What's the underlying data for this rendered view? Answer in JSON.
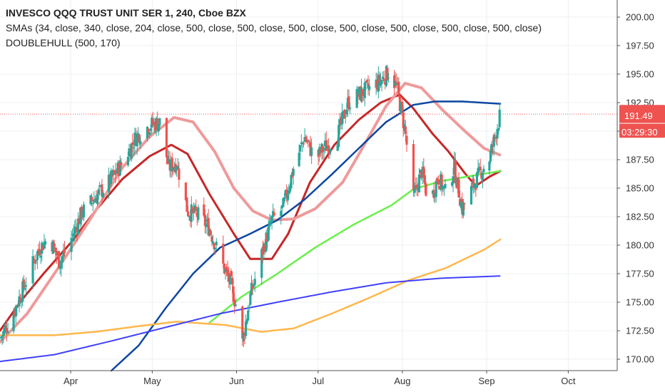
{
  "legend": {
    "title": "INVESCO QQQ TRUST UNIT SER 1, 240, Cboe BZX",
    "smas": "SMAs (34, close, 340, close, 204, close, 500, close, 500, close, 500, close, 500, close, 500, close, 500, close, 500, close)",
    "hull": "DOUBLEHULL (500, 170)"
  },
  "price_badge": {
    "price": "191.49",
    "countdown": "03:29:30",
    "color": "#ef5350"
  },
  "colors": {
    "up": "#26a69a",
    "down": "#ef5350",
    "hull_fast": "#c62828",
    "hull_slow": "#ef9a9a",
    "sma_blue": "#0d47a1",
    "sma_green": "#69f04a",
    "sma_orange": "#ffb74d",
    "sma_violet": "#3d3dff",
    "price_line": "#ef5350"
  },
  "chart_data": {
    "type": "candlestick",
    "title": "INVESCO QQQ TRUST UNIT SER 1, 240, Cboe BZX",
    "ylim": [
      169,
      201.5
    ],
    "yticks": [
      170,
      172.5,
      175,
      177.5,
      180,
      182.5,
      185,
      187.5,
      190,
      192.5,
      195,
      197.5,
      200
    ],
    "ytick_labels": [
      "170.00",
      "172.50",
      "175.00",
      "177.50",
      "180.00",
      "182.50",
      "185.00",
      "187.50",
      "190.00",
      "192.50",
      "195.00",
      "197.50",
      "200.00"
    ],
    "x_range": [
      "2019-03-06",
      "2019-10-19"
    ],
    "xticks": [
      {
        "label": "Apr",
        "date": "2019-04-01"
      },
      {
        "label": "May",
        "date": "2019-05-01"
      },
      {
        "label": "Jun",
        "date": "2019-06-01"
      },
      {
        "label": "Jul",
        "date": "2019-07-01"
      },
      {
        "label": "Aug",
        "date": "2019-08-01"
      },
      {
        "label": "Sep",
        "date": "2019-09-01"
      },
      {
        "label": "Oct",
        "date": "2019-10-01"
      }
    ],
    "last_price": 191.49,
    "close_path": [
      [
        "2019-03-06",
        171.8
      ],
      [
        "2019-03-10",
        173.5
      ],
      [
        "2019-03-15",
        176.5
      ],
      [
        "2019-03-20",
        179.5
      ],
      [
        "2019-03-24",
        180.8
      ],
      [
        "2019-03-28",
        178.5
      ],
      [
        "2019-04-01",
        180.5
      ],
      [
        "2019-04-05",
        182.8
      ],
      [
        "2019-04-10",
        184.2
      ],
      [
        "2019-04-15",
        185.5
      ],
      [
        "2019-04-20",
        187.2
      ],
      [
        "2019-04-25",
        189.5
      ],
      [
        "2019-04-30",
        190.5
      ],
      [
        "2019-05-04",
        190.8
      ],
      [
        "2019-05-07",
        186.8
      ],
      [
        "2019-05-10",
        187.2
      ],
      [
        "2019-05-14",
        183.0
      ],
      [
        "2019-05-18",
        182.6
      ],
      [
        "2019-05-22",
        181.5
      ],
      [
        "2019-05-26",
        178.8
      ],
      [
        "2019-05-30",
        176.5
      ],
      [
        "2019-06-01",
        174.5
      ],
      [
        "2019-06-03",
        171.2
      ],
      [
        "2019-06-06",
        175.5
      ],
      [
        "2019-06-10",
        179.0
      ],
      [
        "2019-06-14",
        182.2
      ],
      [
        "2019-06-18",
        183.2
      ],
      [
        "2019-06-22",
        186.8
      ],
      [
        "2019-06-26",
        189.5
      ],
      [
        "2019-06-30",
        187.5
      ],
      [
        "2019-07-03",
        188.5
      ],
      [
        "2019-07-08",
        189.5
      ],
      [
        "2019-07-12",
        192.5
      ],
      [
        "2019-07-16",
        193.2
      ],
      [
        "2019-07-20",
        193.8
      ],
      [
        "2019-07-24",
        194.4
      ],
      [
        "2019-07-27",
        195.2
      ],
      [
        "2019-07-30",
        193.8
      ],
      [
        "2019-08-02",
        190.0
      ],
      [
        "2019-08-05",
        184.0
      ],
      [
        "2019-08-08",
        186.5
      ],
      [
        "2019-08-11",
        183.5
      ],
      [
        "2019-08-14",
        186.0
      ],
      [
        "2019-08-17",
        184.5
      ],
      [
        "2019-08-20",
        186.8
      ],
      [
        "2019-08-23",
        183.2
      ],
      [
        "2019-08-27",
        185.2
      ],
      [
        "2019-08-30",
        186.5
      ],
      [
        "2019-09-02",
        187.6
      ],
      [
        "2019-09-04",
        189.5
      ],
      [
        "2019-09-06",
        191.49
      ]
    ],
    "series": [
      {
        "name": "DOUBLEHULL fast",
        "color": "#c62828",
        "points": [
          [
            "2019-03-06",
            172.5
          ],
          [
            "2019-03-14",
            175.2
          ],
          [
            "2019-03-22",
            177.5
          ],
          [
            "2019-04-01",
            180.2
          ],
          [
            "2019-04-10",
            183.0
          ],
          [
            "2019-04-20",
            185.8
          ],
          [
            "2019-04-30",
            187.8
          ],
          [
            "2019-05-08",
            188.8
          ],
          [
            "2019-05-14",
            188.0
          ],
          [
            "2019-05-22",
            184.5
          ],
          [
            "2019-05-31",
            181.0
          ],
          [
            "2019-06-06",
            178.8
          ],
          [
            "2019-06-14",
            178.8
          ],
          [
            "2019-06-20",
            181.0
          ],
          [
            "2019-06-28",
            185.5
          ],
          [
            "2019-07-07",
            188.8
          ],
          [
            "2019-07-16",
            191.0
          ],
          [
            "2019-07-24",
            192.5
          ],
          [
            "2019-07-31",
            193.2
          ],
          [
            "2019-08-05",
            192.0
          ],
          [
            "2019-08-12",
            189.8
          ],
          [
            "2019-08-18",
            188.2
          ],
          [
            "2019-08-24",
            186.3
          ],
          [
            "2019-08-28",
            185.2
          ],
          [
            "2019-09-02",
            186.0
          ],
          [
            "2019-09-06",
            186.5
          ]
        ]
      },
      {
        "name": "DOUBLEHULL slow",
        "color": "#ef9a9a",
        "points": [
          [
            "2019-03-06",
            171.5
          ],
          [
            "2019-03-16",
            174.0
          ],
          [
            "2019-03-28",
            178.2
          ],
          [
            "2019-04-08",
            182.2
          ],
          [
            "2019-04-20",
            186.8
          ],
          [
            "2019-04-30",
            189.5
          ],
          [
            "2019-05-09",
            191.2
          ],
          [
            "2019-05-16",
            190.8
          ],
          [
            "2019-05-24",
            188.2
          ],
          [
            "2019-05-31",
            185.0
          ],
          [
            "2019-06-07",
            183.0
          ],
          [
            "2019-06-14",
            182.2
          ],
          [
            "2019-06-22",
            182.3
          ],
          [
            "2019-06-30",
            183.2
          ],
          [
            "2019-07-10",
            185.5
          ],
          [
            "2019-07-18",
            188.8
          ],
          [
            "2019-07-26",
            192.2
          ],
          [
            "2019-08-02",
            194.2
          ],
          [
            "2019-08-08",
            193.8
          ],
          [
            "2019-08-16",
            191.8
          ],
          [
            "2019-08-24",
            190.0
          ],
          [
            "2019-08-31",
            188.5
          ],
          [
            "2019-09-06",
            187.9
          ]
        ]
      },
      {
        "name": "SMA blue",
        "color": "#0d47a1",
        "points": [
          [
            "2019-04-16",
            169.0
          ],
          [
            "2019-04-26",
            171.2
          ],
          [
            "2019-05-06",
            174.5
          ],
          [
            "2019-05-16",
            177.5
          ],
          [
            "2019-05-26",
            179.8
          ],
          [
            "2019-06-06",
            181.0
          ],
          [
            "2019-06-16",
            182.2
          ],
          [
            "2019-06-26",
            184.0
          ],
          [
            "2019-07-06",
            186.2
          ],
          [
            "2019-07-16",
            188.5
          ],
          [
            "2019-07-26",
            190.8
          ],
          [
            "2019-08-05",
            192.3
          ],
          [
            "2019-08-13",
            192.6
          ],
          [
            "2019-08-23",
            192.6
          ],
          [
            "2019-09-06",
            192.4
          ]
        ]
      },
      {
        "name": "SMA green",
        "color": "#69f04a",
        "points": [
          [
            "2019-05-22",
            173.2
          ],
          [
            "2019-06-03",
            175.5
          ],
          [
            "2019-06-16",
            177.5
          ],
          [
            "2019-06-30",
            179.8
          ],
          [
            "2019-07-14",
            181.8
          ],
          [
            "2019-07-28",
            183.5
          ],
          [
            "2019-08-05",
            184.9
          ],
          [
            "2019-08-15",
            185.6
          ],
          [
            "2019-08-27",
            186.1
          ],
          [
            "2019-09-06",
            186.5
          ]
        ]
      },
      {
        "name": "SMA orange",
        "color": "#ffb74d",
        "points": [
          [
            "2019-03-06",
            172.1
          ],
          [
            "2019-03-26",
            172.1
          ],
          [
            "2019-04-10",
            172.4
          ],
          [
            "2019-04-26",
            172.9
          ],
          [
            "2019-05-10",
            173.3
          ],
          [
            "2019-05-28",
            173.0
          ],
          [
            "2019-06-10",
            172.4
          ],
          [
            "2019-06-22",
            172.7
          ],
          [
            "2019-07-06",
            174.0
          ],
          [
            "2019-07-20",
            175.4
          ],
          [
            "2019-08-03",
            176.9
          ],
          [
            "2019-08-17",
            178.0
          ],
          [
            "2019-08-31",
            179.6
          ],
          [
            "2019-09-06",
            180.5
          ]
        ]
      },
      {
        "name": "SMA violet",
        "color": "#3d3dff",
        "points": [
          [
            "2019-03-06",
            169.8
          ],
          [
            "2019-03-26",
            170.4
          ],
          [
            "2019-04-16",
            171.6
          ],
          [
            "2019-05-06",
            172.8
          ],
          [
            "2019-05-26",
            174.0
          ],
          [
            "2019-06-16",
            175.0
          ],
          [
            "2019-07-06",
            175.9
          ],
          [
            "2019-07-26",
            176.7
          ],
          [
            "2019-08-15",
            177.1
          ],
          [
            "2019-09-06",
            177.3
          ]
        ]
      }
    ]
  }
}
